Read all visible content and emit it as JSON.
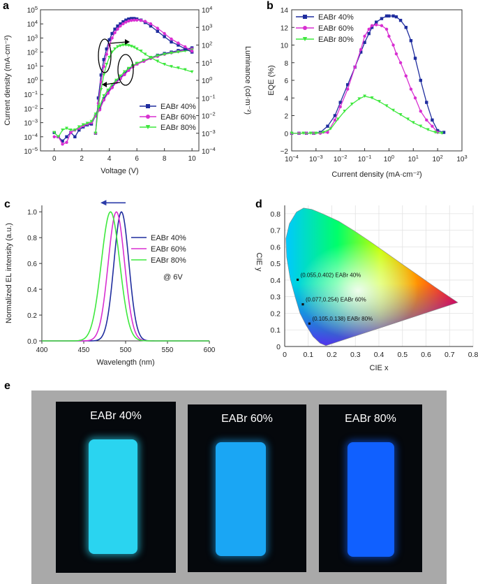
{
  "labels": {
    "a": "a",
    "b": "b",
    "c": "c",
    "d": "d",
    "e": "e"
  },
  "colors": {
    "s40": "#1f2d9e",
    "s60": "#d82fd1",
    "s80": "#3ee83e"
  },
  "chart_data": [
    {
      "panel": "a",
      "type": "line",
      "xlabel": "Voltage (V)",
      "ylabel": "Current density (mA·cm⁻²)",
      "y2label": "Luminance (cd·m⁻²)",
      "xlim": [
        -1,
        10.5
      ],
      "ylim_log10": [
        -5,
        5
      ],
      "y2lim_log10": [
        -4,
        4
      ],
      "xticks": [
        "0",
        "2",
        "4",
        "6",
        "8",
        "10"
      ],
      "legend_position": "lower-right",
      "series": [
        {
          "name": "EABr 40%",
          "quantity": "current_density",
          "marker": "square",
          "x": [
            0,
            0.3,
            0.6,
            0.9,
            1.2,
            1.5,
            1.8,
            2.1,
            2.4,
            2.7,
            3.0,
            3.3,
            3.6,
            3.9,
            4.2,
            4.5,
            4.8,
            5.1,
            5.4,
            5.7,
            6.0,
            6.5,
            7.0,
            7.5,
            8.0,
            8.5,
            9.0,
            9.5,
            10.0
          ],
          "y": [
            0.0002,
            0.0001,
            5e-05,
            0.0001,
            0.0002,
            0.0001,
            0.0003,
            0.0005,
            0.0007,
            0.0008,
            0.003,
            0.01,
            0.05,
            0.15,
            0.35,
            0.8,
            1.5,
            3,
            6,
            10,
            15,
            25,
            40,
            60,
            80,
            100,
            130,
            160,
            200
          ]
        },
        {
          "name": "EABr 60%",
          "quantity": "current_density",
          "marker": "circle",
          "x": [
            0,
            0.3,
            0.6,
            0.9,
            1.2,
            1.5,
            1.8,
            2.1,
            2.4,
            2.7,
            3.0,
            3.3,
            3.6,
            3.9,
            4.2,
            4.5,
            4.8,
            5.1,
            5.4,
            5.7,
            6.0,
            6.5,
            7.0,
            7.5,
            8.0,
            8.5,
            9.0,
            9.5,
            10.0
          ],
          "y": [
            0.0001,
            0.0001,
            3e-05,
            4e-05,
            0.0002,
            0.0003,
            0.0004,
            0.0006,
            0.0008,
            0.001,
            0.003,
            0.008,
            0.04,
            0.12,
            0.3,
            0.7,
            1.3,
            2.5,
            5,
            9,
            14,
            22,
            35,
            50,
            70,
            90,
            110,
            140,
            170
          ]
        },
        {
          "name": "EABr 80%",
          "quantity": "current_density",
          "marker": "triangle",
          "x": [
            0,
            0.3,
            0.6,
            0.9,
            1.2,
            1.5,
            1.8,
            2.1,
            2.4,
            2.7,
            3.0,
            3.3,
            3.6,
            3.9,
            4.2,
            4.5,
            4.8,
            5.1,
            5.4,
            5.7,
            6.0,
            6.5,
            7.0,
            7.5,
            8.0,
            8.5,
            9.0,
            9.5,
            10.0
          ],
          "y": [
            0.0002,
            0.0001,
            0.0003,
            0.0004,
            0.0003,
            0.0003,
            0.0005,
            0.0007,
            0.0009,
            0.0012,
            0.004,
            0.015,
            0.08,
            0.2,
            0.5,
            1,
            2,
            4,
            7,
            11,
            16,
            26,
            40,
            55,
            70,
            85,
            100,
            120,
            140
          ]
        },
        {
          "name": "EABr 40%",
          "quantity": "luminance",
          "marker": "square",
          "x": [
            3.0,
            3.2,
            3.4,
            3.6,
            3.8,
            4.0,
            4.2,
            4.4,
            4.6,
            4.8,
            5.0,
            5.2,
            5.4,
            5.6,
            5.8,
            6.0,
            6.3,
            6.6,
            7.0,
            7.5,
            8.0,
            8.5,
            9.0,
            9.5,
            10.0
          ],
          "y": [
            0.001,
            0.1,
            2,
            15,
            60,
            200,
            450,
            800,
            1200,
            1600,
            2100,
            2600,
            3000,
            3200,
            3200,
            3000,
            2600,
            1900,
            1200,
            600,
            300,
            150,
            100,
            60,
            40
          ]
        },
        {
          "name": "EABr 60%",
          "quantity": "luminance",
          "marker": "circle",
          "x": [
            3.0,
            3.2,
            3.4,
            3.6,
            3.8,
            4.0,
            4.2,
            4.4,
            4.6,
            4.8,
            5.0,
            5.2,
            5.4,
            5.6,
            5.8,
            6.0,
            6.3,
            6.6,
            7.0,
            7.5,
            8.0,
            8.5,
            9.0,
            9.5,
            10.0
          ],
          "y": [
            0.001,
            0.05,
            0.8,
            6,
            30,
            100,
            250,
            500,
            800,
            1200,
            1600,
            2000,
            2300,
            2500,
            2600,
            2600,
            2500,
            2200,
            1600,
            900,
            450,
            220,
            130,
            80,
            45
          ]
        },
        {
          "name": "EABr 80%",
          "quantity": "luminance",
          "marker": "triangle",
          "x": [
            3.0,
            3.2,
            3.4,
            3.6,
            3.8,
            4.0,
            4.2,
            4.4,
            4.6,
            4.8,
            5.0,
            5.2,
            5.4,
            5.6,
            5.8,
            6.0,
            6.3,
            6.6,
            7.0,
            7.5,
            8.0,
            8.5,
            9.0,
            9.5,
            10.0
          ],
          "y": [
            0.001,
            0.03,
            0.3,
            2,
            8,
            20,
            40,
            60,
            80,
            90,
            100,
            100,
            95,
            85,
            75,
            60,
            45,
            30,
            20,
            12,
            8,
            6,
            5,
            4,
            3
          ]
        }
      ]
    },
    {
      "panel": "b",
      "type": "line",
      "xlabel": "Current density (mA·cm⁻²)",
      "ylabel": "EQE (%)",
      "xlim_log10": [
        -4,
        3
      ],
      "ylim": [
        -2,
        14
      ],
      "yticks": [
        "−2",
        "0",
        "2",
        "4",
        "6",
        "8",
        "10",
        "12",
        "14"
      ],
      "legend_position": "top-left",
      "series": [
        {
          "name": "EABr 40%",
          "marker": "square",
          "x": [
            0.0001,
            0.0002,
            0.0004,
            0.0008,
            0.0015,
            0.003,
            0.006,
            0.01,
            0.02,
            0.04,
            0.07,
            0.1,
            0.15,
            0.2,
            0.3,
            0.5,
            0.8,
            1,
            1.5,
            2,
            3,
            5,
            8,
            12,
            20,
            35,
            60,
            100,
            180
          ],
          "y": [
            0,
            0,
            0,
            0,
            0.1,
            0.8,
            2,
            3.5,
            5.5,
            7.5,
            9.2,
            10.3,
            11.3,
            12,
            12.6,
            13,
            13.3,
            13.3,
            13.3,
            13.2,
            12.8,
            12,
            10.5,
            8.5,
            6,
            3.5,
            1.5,
            0.3,
            0.1
          ]
        },
        {
          "name": "EABr 60%",
          "marker": "circle",
          "x": [
            0.0001,
            0.0002,
            0.0004,
            0.0008,
            0.0015,
            0.003,
            0.006,
            0.01,
            0.02,
            0.04,
            0.07,
            0.1,
            0.15,
            0.2,
            0.3,
            0.5,
            0.8,
            1,
            1.5,
            2,
            3,
            5,
            8,
            12,
            20,
            35,
            60,
            100
          ],
          "y": [
            0,
            0,
            0,
            0,
            0,
            0.1,
            1.5,
            3,
            5,
            7.5,
            9.5,
            11,
            11.8,
            12.2,
            12.3,
            12.2,
            11.8,
            11,
            10,
            9,
            8,
            6.5,
            5,
            4,
            2.5,
            1.5,
            0.8,
            0.1
          ]
        },
        {
          "name": "EABr 80%",
          "marker": "triangle",
          "x": [
            0.0001,
            0.0003,
            0.0006,
            0.001,
            0.002,
            0.004,
            0.008,
            0.015,
            0.03,
            0.06,
            0.1,
            0.2,
            0.4,
            0.8,
            1.5,
            3,
            6,
            10,
            20,
            40,
            80,
            150
          ],
          "y": [
            0,
            0,
            0,
            0,
            0.1,
            0.5,
            1.6,
            2.5,
            3.3,
            3.9,
            4.2,
            4,
            3.6,
            3.1,
            2.6,
            2.1,
            1.6,
            1.2,
            0.8,
            0.4,
            0.1,
            0
          ]
        }
      ]
    },
    {
      "panel": "c",
      "type": "line",
      "xlabel": "Wavelength (nm)",
      "ylabel": "Normalized EL intensity (a.u.)",
      "xlim": [
        400,
        600
      ],
      "ylim": [
        0,
        1.05
      ],
      "xticks": [
        "400",
        "450",
        "500",
        "550",
        "600"
      ],
      "yticks": [
        "0.0",
        "0.2",
        "0.4",
        "0.6",
        "0.8",
        "1.0"
      ],
      "annotation": "@ 6V",
      "legend_position": "right",
      "series": [
        {
          "name": "EABr 40%",
          "peak_nm": 495,
          "fwhm_nm": 21
        },
        {
          "name": "EABr 60%",
          "peak_nm": 489,
          "fwhm_nm": 23
        },
        {
          "name": "EABr 80%",
          "peak_nm": 482,
          "fwhm_nm": 26
        }
      ]
    },
    {
      "panel": "d",
      "type": "scatter",
      "xlabel": "CIE x",
      "ylabel": "CIE y",
      "xlim": [
        0,
        0.8
      ],
      "ylim": [
        0,
        0.85
      ],
      "xticks": [
        "0",
        "0.1",
        "0.2",
        "0.3",
        "0.4",
        "0.5",
        "0.6",
        "0.7",
        "0.8"
      ],
      "yticks": [
        "0",
        "0.1",
        "0.2",
        "0.3",
        "0.4",
        "0.5",
        "0.6",
        "0.7",
        "0.8"
      ],
      "points": [
        {
          "x": 0.055,
          "y": 0.402,
          "label": "(0.055,0.402) EABr 40%"
        },
        {
          "x": 0.077,
          "y": 0.254,
          "label": "(0.077,0.254) EABr 60%"
        },
        {
          "x": 0.105,
          "y": 0.138,
          "label": "(0.105,0.138) EABr 80%"
        }
      ]
    }
  ],
  "photos": [
    {
      "label": "EABr 40%",
      "glow": "#2ad4f0"
    },
    {
      "label": "EABr 60%",
      "glow": "#1aa6f4"
    },
    {
      "label": "EABr 80%",
      "glow": "#1060ff"
    }
  ]
}
